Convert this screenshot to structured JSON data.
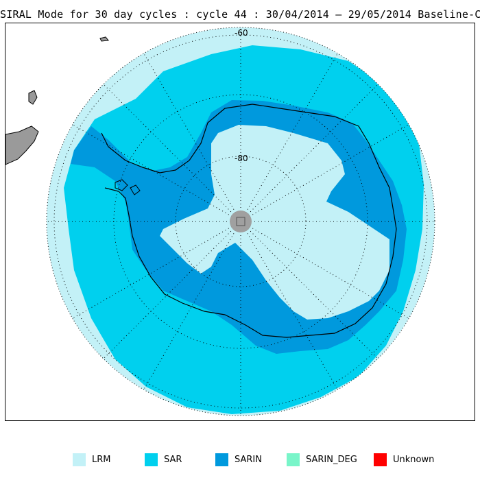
{
  "title": "SIRAL Mode for 30 day cycles : cycle 44 : 30/04/2014 – 29/05/2014 Baseline-C",
  "map": {
    "projection": "south polar stereographic",
    "lat_labels": [
      "-60",
      "-80"
    ],
    "colors": {
      "ocean_background": "#ffffff",
      "land_outside": "#9a9a9a",
      "pole_hole": "#a0a0a0",
      "lrm": "#c3f1f7",
      "sar": "#00d0ee",
      "sarin": "#0099dd",
      "sarin_deg": "#79f5c9",
      "unknown": "#ff0000",
      "grid": "#000000",
      "coastline": "#000000"
    }
  },
  "legend": [
    {
      "label": "LRM",
      "color": "#c3f1f7"
    },
    {
      "label": "SAR",
      "color": "#00d0ee"
    },
    {
      "label": "SARIN",
      "color": "#0099dd"
    },
    {
      "label": "SARIN_DEG",
      "color": "#79f5c9"
    },
    {
      "label": "Unknown",
      "color": "#ff0000"
    }
  ]
}
